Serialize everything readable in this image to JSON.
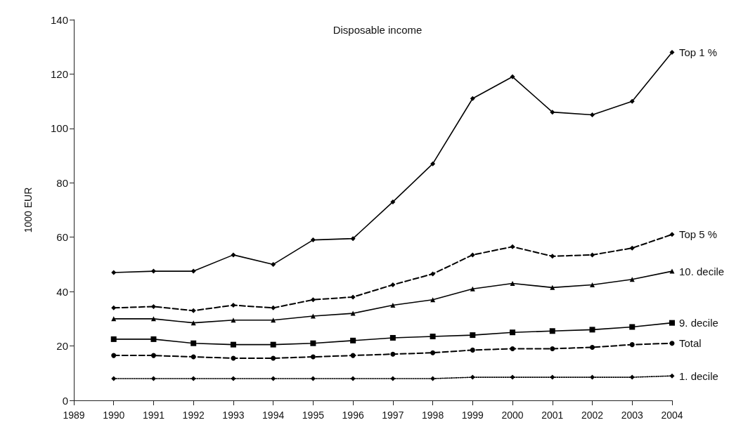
{
  "chart_data": {
    "type": "line",
    "title": "Disposable income",
    "ylabel": "1000 EUR",
    "x": [
      1990,
      1991,
      1992,
      1993,
      1994,
      1995,
      1996,
      1997,
      1998,
      1999,
      2000,
      2001,
      2002,
      2003,
      2004
    ],
    "xlim": [
      1989,
      2004
    ],
    "xticks": [
      1989,
      1990,
      1991,
      1992,
      1993,
      1994,
      1995,
      1996,
      1997,
      1998,
      1999,
      2000,
      2001,
      2002,
      2003,
      2004
    ],
    "ylim": [
      0,
      140
    ],
    "yticks": [
      0,
      20,
      40,
      60,
      80,
      100,
      120,
      140
    ],
    "grid": false,
    "legend": false,
    "series": [
      {
        "name": "Top 1 %",
        "color": "#000000",
        "marker": "diamond",
        "line_style": "solid",
        "values": [
          47,
          47.5,
          47.5,
          53.5,
          50,
          59,
          59.5,
          73,
          87,
          111,
          119,
          106,
          105,
          110,
          128
        ]
      },
      {
        "name": "Top 5 %",
        "color": "#000000",
        "marker": "diamond",
        "line_style": "dashed",
        "values": [
          34,
          34.5,
          33,
          35,
          34,
          37,
          38,
          42.5,
          46.5,
          53.5,
          56.5,
          53,
          53.5,
          56,
          61
        ]
      },
      {
        "name": "10. decile",
        "color": "#000000",
        "marker": "triangle",
        "line_style": "solid",
        "values": [
          30,
          30,
          28.5,
          29.5,
          29.5,
          31,
          32,
          35,
          37,
          41,
          43,
          41.5,
          42.5,
          44.5,
          47.5
        ]
      },
      {
        "name": "9. decile",
        "color": "#000000",
        "marker": "square",
        "line_style": "solid",
        "values": [
          22.5,
          22.5,
          21,
          20.5,
          20.5,
          21,
          22,
          23,
          23.5,
          24,
          25,
          25.5,
          26,
          27,
          28.5
        ]
      },
      {
        "name": "Total",
        "color": "#000000",
        "marker": "circle",
        "line_style": "dashed",
        "values": [
          16.5,
          16.5,
          16,
          15.5,
          15.5,
          16,
          16.5,
          17,
          17.5,
          18.5,
          19,
          19,
          19.5,
          20.5,
          21
        ]
      },
      {
        "name": "1. decile",
        "color": "#000000",
        "marker": "diamond",
        "line_style": "dotted",
        "values": [
          8,
          8,
          8,
          8,
          8,
          8,
          8,
          8,
          8,
          8.5,
          8.5,
          8.5,
          8.5,
          8.5,
          9
        ]
      }
    ]
  }
}
